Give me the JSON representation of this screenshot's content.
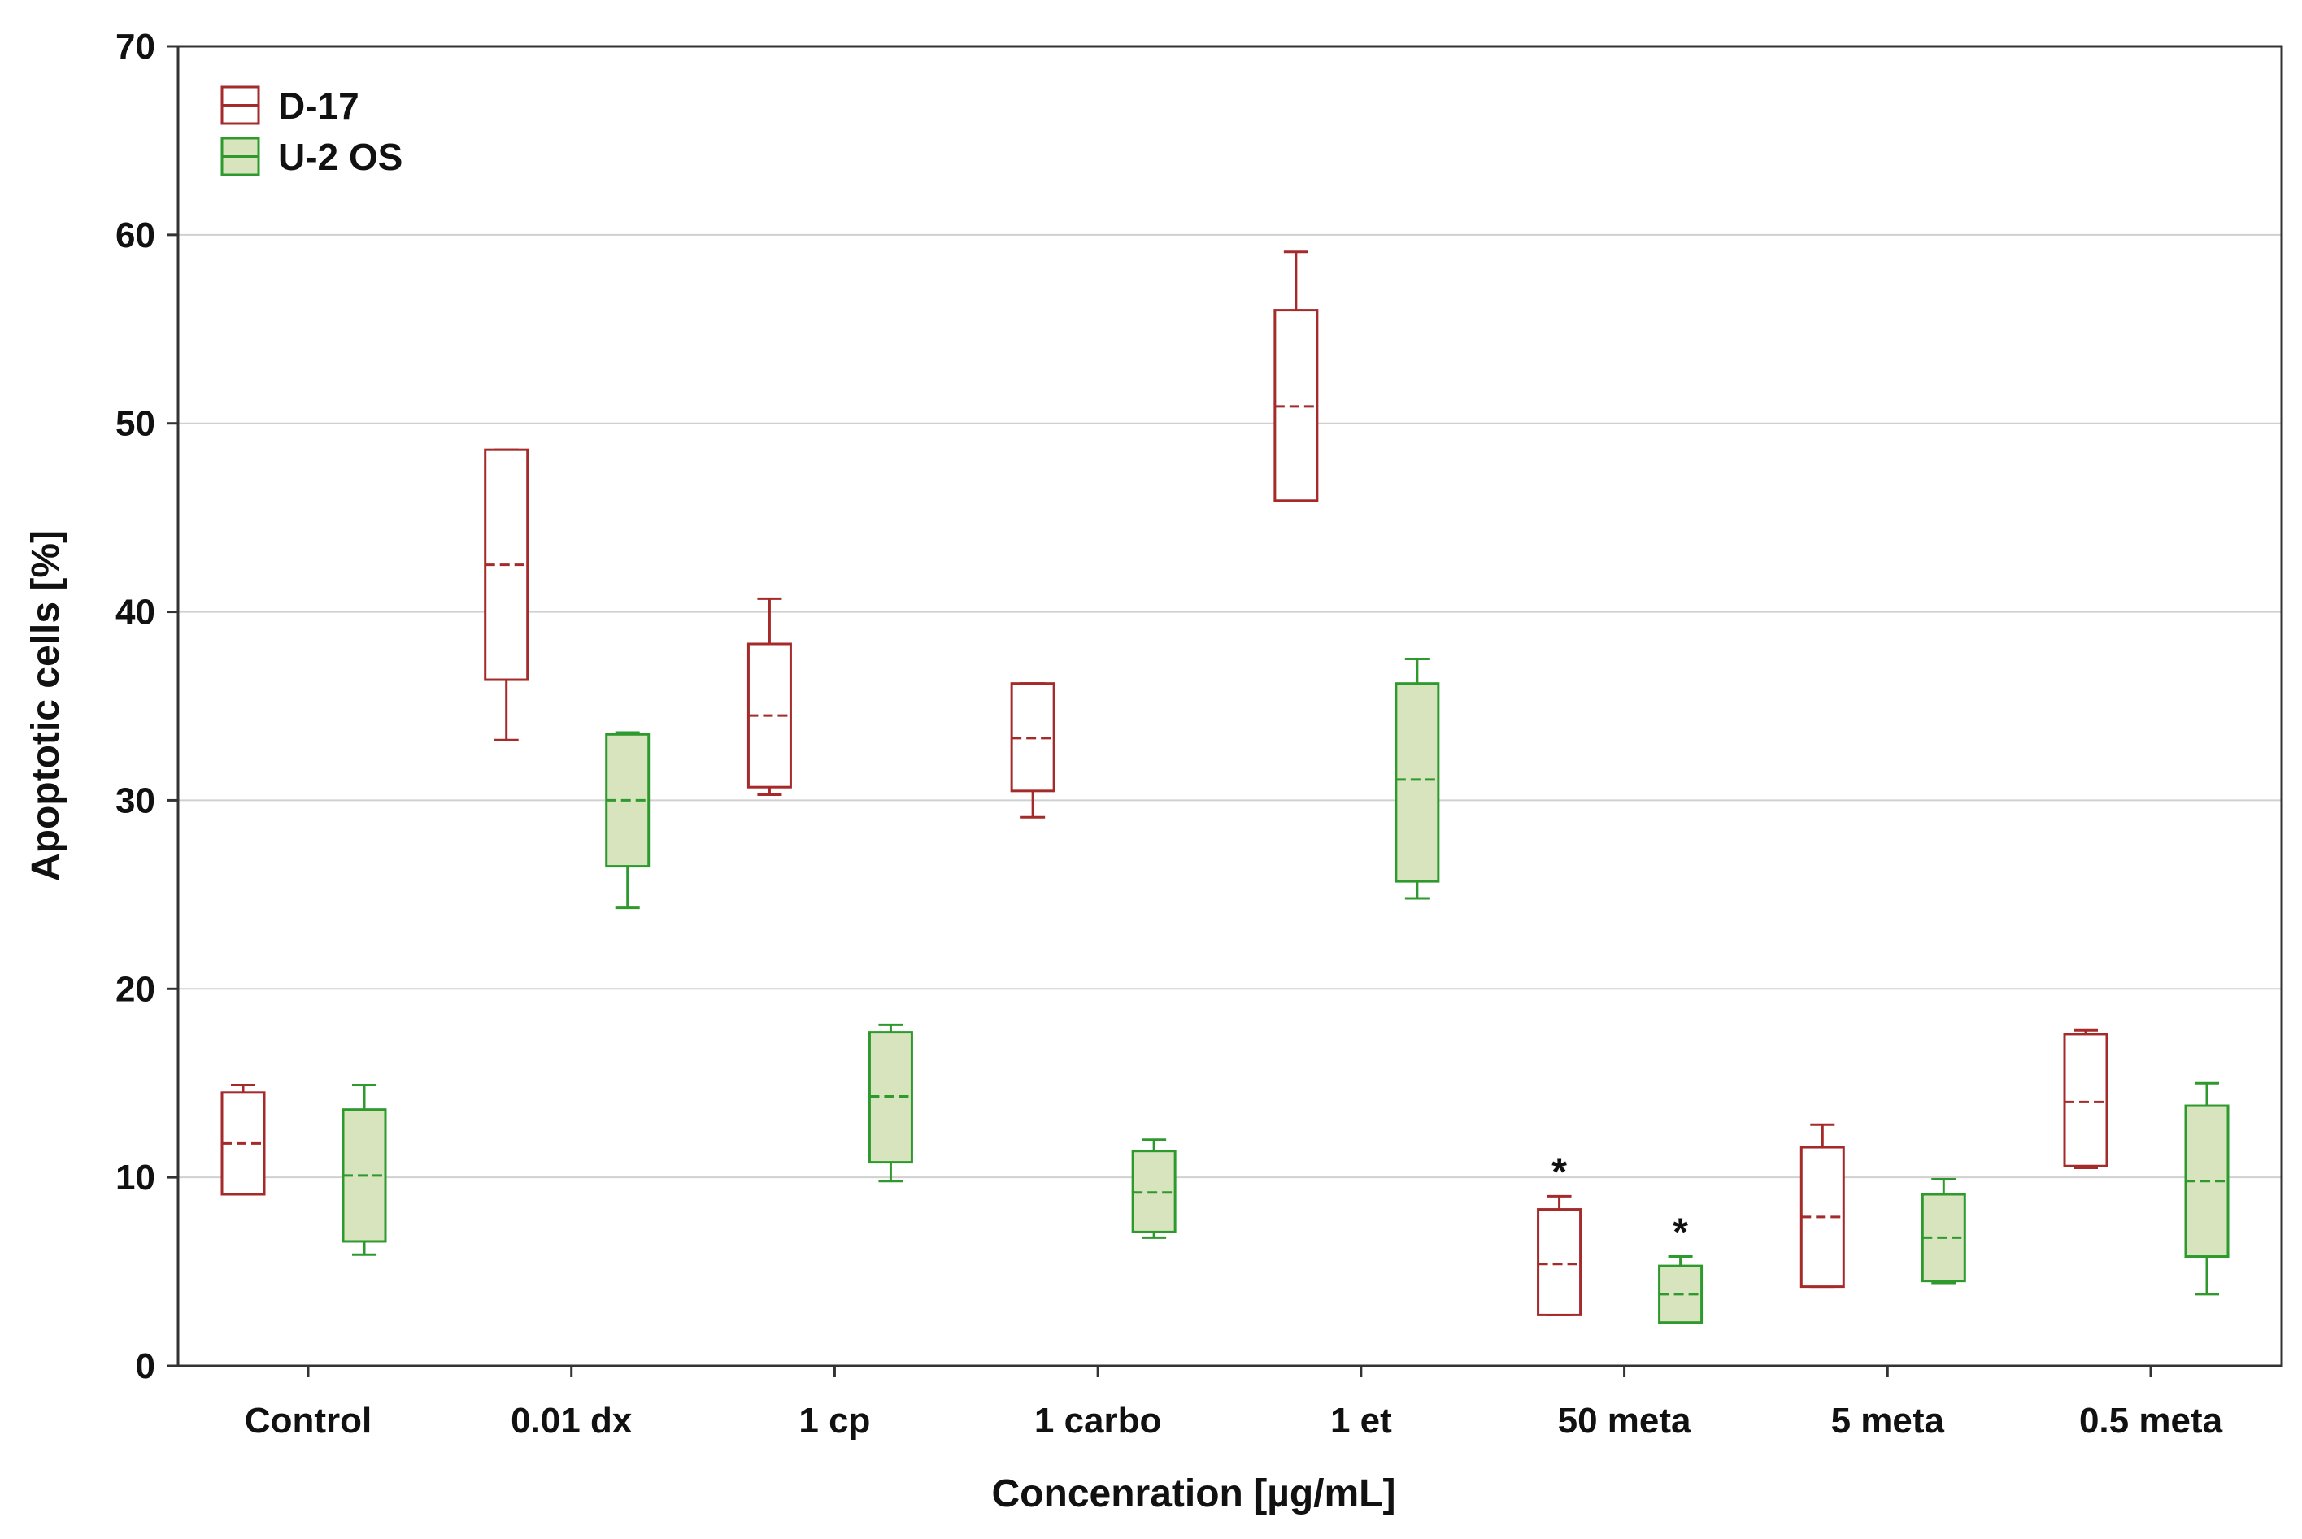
{
  "chart_data": {
    "type": "box",
    "title": "",
    "xlabel": "Concenration [µg/mL]",
    "ylabel": "Apoptotic cells  [%]",
    "ylim": [
      0,
      70
    ],
    "yticks": [
      "0",
      "10",
      "20",
      "30",
      "40",
      "50",
      "60",
      "70"
    ],
    "ytick_values": [
      0,
      10,
      20,
      30,
      40,
      50,
      60,
      70
    ],
    "grid": true,
    "legend_position": "top-left",
    "categories": [
      "Control",
      "0.01 dx",
      "1 cp",
      "1 carbo",
      "1 et",
      "50 meta",
      "5 meta",
      "0.5 meta"
    ],
    "series": [
      {
        "name": "D-17",
        "stroke": "#a52a2a",
        "fill": "#ffffff",
        "median_style": "dashed",
        "boxes": [
          {
            "category": "Control",
            "min": 9.1,
            "q1": 9.1,
            "median": 11.8,
            "q3": 14.5,
            "max": 14.9,
            "significant": false
          },
          {
            "category": "0.01 dx",
            "min": 33.2,
            "q1": 36.4,
            "median": 42.5,
            "q3": 48.6,
            "max": 48.6,
            "significant": false
          },
          {
            "category": "1 cp",
            "min": 30.3,
            "q1": 30.7,
            "median": 34.5,
            "q3": 38.3,
            "max": 40.7,
            "significant": false
          },
          {
            "category": "1 carbo",
            "min": 29.1,
            "q1": 30.5,
            "median": 33.3,
            "q3": 36.2,
            "max": 36.2,
            "significant": false
          },
          {
            "category": "1 et",
            "min": 45.9,
            "q1": 45.9,
            "median": 50.9,
            "q3": 56.0,
            "max": 59.1,
            "significant": false
          },
          {
            "category": "50 meta",
            "min": 2.7,
            "q1": 2.7,
            "median": 5.4,
            "q3": 8.3,
            "max": 9.0,
            "significant": true
          },
          {
            "category": "5 meta",
            "min": 4.2,
            "q1": 4.2,
            "median": 7.9,
            "q3": 11.6,
            "max": 12.8,
            "significant": false
          },
          {
            "category": "0.5 meta",
            "min": 10.5,
            "q1": 10.6,
            "median": 14.0,
            "q3": 17.6,
            "max": 17.8,
            "significant": false
          }
        ]
      },
      {
        "name": "U-2 OS",
        "stroke": "#2e9a2e",
        "fill": "#d8e4be",
        "median_style": "dashed",
        "boxes": [
          {
            "category": "Control",
            "min": 5.9,
            "q1": 6.6,
            "median": 10.1,
            "q3": 13.6,
            "max": 14.9,
            "significant": false
          },
          {
            "category": "0.01 dx",
            "min": 24.3,
            "q1": 26.5,
            "median": 30.0,
            "q3": 33.5,
            "max": 33.6,
            "significant": false
          },
          {
            "category": "1 cp",
            "min": 9.8,
            "q1": 10.8,
            "median": 14.3,
            "q3": 17.7,
            "max": 18.1,
            "significant": false
          },
          {
            "category": "1 carbo",
            "min": 6.8,
            "q1": 7.1,
            "median": 9.2,
            "q3": 11.4,
            "max": 12.0,
            "significant": false
          },
          {
            "category": "1 et",
            "min": 24.8,
            "q1": 25.7,
            "median": 31.1,
            "q3": 36.2,
            "max": 37.5,
            "significant": false
          },
          {
            "category": "50 meta",
            "min": 2.3,
            "q1": 2.3,
            "median": 3.8,
            "q3": 5.3,
            "max": 5.8,
            "significant": true
          },
          {
            "category": "5 meta",
            "min": 4.4,
            "q1": 4.5,
            "median": 6.8,
            "q3": 9.1,
            "max": 9.9,
            "significant": false
          },
          {
            "category": "0.5 meta",
            "min": 3.8,
            "q1": 5.8,
            "median": 9.8,
            "q3": 13.8,
            "max": 15.0,
            "significant": false
          }
        ]
      }
    ],
    "annotations": [
      {
        "text": "*",
        "series": "D-17",
        "category": "50 meta"
      },
      {
        "text": "*",
        "series": "U-2 OS",
        "category": "50 meta"
      }
    ]
  }
}
